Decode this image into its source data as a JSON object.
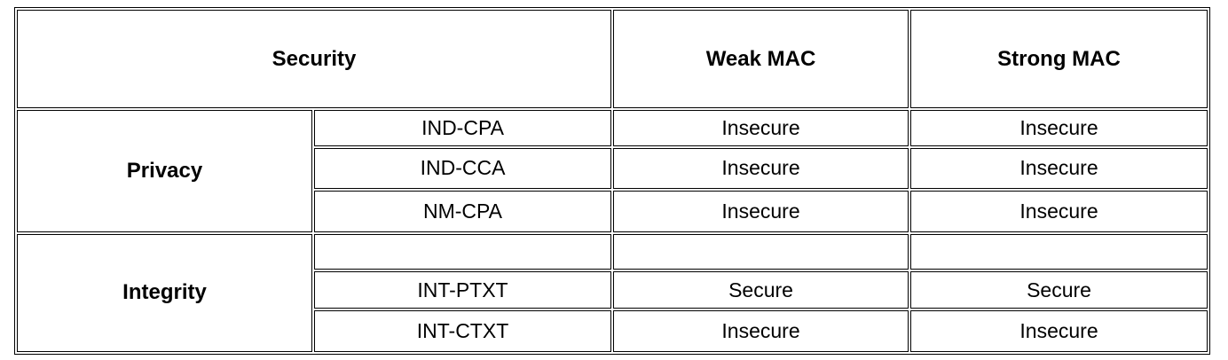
{
  "header": {
    "security": "Security",
    "weak_mac": "Weak MAC",
    "strong_mac": "Strong MAC"
  },
  "groups": [
    {
      "label": "Privacy",
      "rows": [
        {
          "notion": "IND-CPA",
          "weak": "Insecure",
          "strong": "Insecure"
        },
        {
          "notion": "IND-CCA",
          "weak": "Insecure",
          "strong": "Insecure"
        },
        {
          "notion": "NM-CPA",
          "weak": "Insecure",
          "strong": "Insecure"
        }
      ]
    },
    {
      "label": "Integrity",
      "rows": [
        {
          "notion": "",
          "weak": "",
          "strong": ""
        },
        {
          "notion": "INT-PTXT",
          "weak": "Secure",
          "strong": "Secure"
        },
        {
          "notion": "INT-CTXT",
          "weak": "Insecure",
          "strong": "Insecure"
        }
      ]
    }
  ]
}
